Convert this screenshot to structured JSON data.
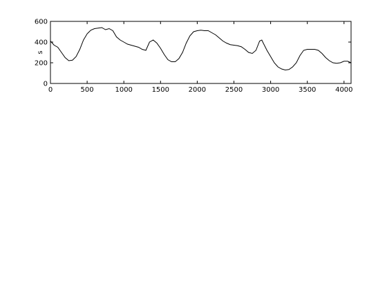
{
  "chart_data": {
    "type": "line",
    "y_label": "s",
    "x": [
      0,
      50,
      100,
      150,
      200,
      250,
      300,
      350,
      400,
      450,
      500,
      550,
      600,
      650,
      700,
      750,
      800,
      850,
      900,
      950,
      1000,
      1050,
      1100,
      1150,
      1200,
      1250,
      1300,
      1350,
      1400,
      1450,
      1500,
      1550,
      1600,
      1650,
      1700,
      1750,
      1800,
      1850,
      1900,
      1950,
      2000,
      2050,
      2100,
      2150,
      2200,
      2250,
      2300,
      2350,
      2400,
      2450,
      2500,
      2550,
      2600,
      2650,
      2700,
      2750,
      2800,
      2850,
      2880,
      2900,
      2950,
      3000,
      3050,
      3100,
      3150,
      3200,
      3250,
      3300,
      3350,
      3400,
      3450,
      3500,
      3550,
      3600,
      3650,
      3700,
      3750,
      3800,
      3850,
      3900,
      3950,
      4000,
      4050,
      4096
    ],
    "values": [
      410,
      370,
      350,
      300,
      250,
      220,
      225,
      260,
      330,
      420,
      480,
      515,
      530,
      535,
      540,
      520,
      530,
      510,
      450,
      420,
      400,
      380,
      370,
      360,
      350,
      330,
      320,
      400,
      420,
      390,
      340,
      280,
      230,
      210,
      210,
      240,
      300,
      390,
      460,
      500,
      510,
      515,
      510,
      510,
      490,
      470,
      440,
      410,
      390,
      375,
      370,
      365,
      355,
      330,
      300,
      290,
      320,
      410,
      420,
      390,
      320,
      260,
      200,
      160,
      140,
      130,
      135,
      160,
      200,
      270,
      320,
      330,
      330,
      330,
      320,
      290,
      250,
      220,
      200,
      195,
      200,
      215,
      215,
      200
    ],
    "color": "#000000",
    "xlim": [
      0,
      4096
    ],
    "xticks": [
      0,
      500,
      1000,
      1500,
      2000,
      2500,
      3000,
      3500,
      4000
    ],
    "ylim": [
      0,
      600
    ],
    "yticks": [
      0,
      200,
      400,
      600
    ]
  }
}
